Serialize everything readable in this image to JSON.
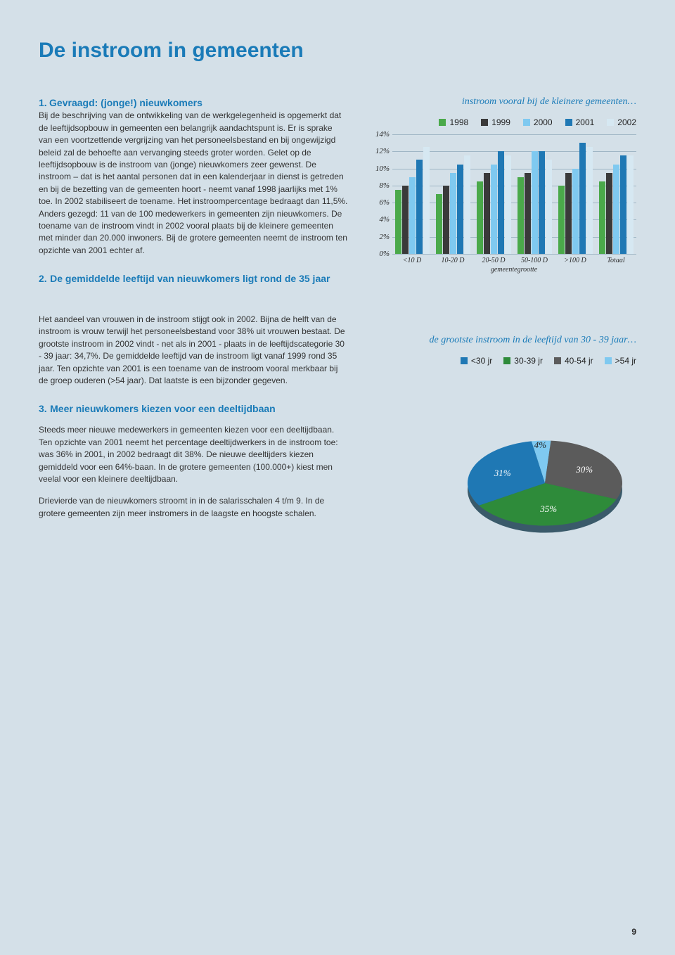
{
  "page_title": "De instroom in gemeenten",
  "page_number": "9",
  "section1": {
    "num": "1.",
    "heading": "Gevraagd: (jonge!) nieuwkomers",
    "body": "Bij de beschrijving van de ontwikkeling van de werkgelegenheid is opgemerkt dat de leeftijdsopbouw in gemeenten een belangrijk aandachtspunt is. Er is sprake van een voortzettende vergrijzing van het personeelsbestand en bij ongewijzigd beleid zal de behoefte aan vervanging steeds groter worden. Gelet op de leeftijdsopbouw is de instroom van (jonge) nieuwkomers zeer gewenst. De instroom – dat is het aantal personen dat in een kalenderjaar in dienst is getreden en bij de bezetting van de gemeenten hoort - neemt vanaf 1998 jaarlijks met 1% toe. In 2002 stabiliseert de toename. Het instroompercentage bedraagt dan 11,5%. Anders gezegd: 11 van de 100 medewerkers in gemeenten zijn nieuwkomers. De toename van de instroom vindt in 2002 vooral plaats bij de kleinere gemeenten met minder dan 20.000 inwoners. Bij de grotere gemeenten neemt de instroom ten opzichte van 2001 echter af."
  },
  "section2": {
    "num": "2.",
    "heading": "De gemiddelde leeftijd van nieuwkomers ligt rond de 35 jaar",
    "body": "Het aandeel van vrouwen in de instroom stijgt ook in 2002. Bijna de helft van de instroom is vrouw terwijl het personeelsbestand voor 38% uit vrouwen bestaat. De grootste instroom in 2002 vindt - net als in 2001 - plaats in de leeftijdscategorie 30 - 39 jaar: 34,7%. De gemiddelde leeftijd van de instroom ligt vanaf 1999 rond 35 jaar. Ten opzichte van 2001 is een toename van de instroom vooral merkbaar bij de groep ouderen (>54 jaar). Dat laatste is een bijzonder gegeven."
  },
  "section3": {
    "num": "3.",
    "heading": "Meer nieuwkomers kiezen voor een deeltijdbaan",
    "body1": "Steeds meer nieuwe medewerkers in gemeenten kiezen voor een deeltijdbaan. Ten opzichte van 2001 neemt het percentage deeltijdwerkers in de instroom toe: was 36% in 2001, in 2002 bedraagt dit 38%. De nieuwe deeltijders kiezen gemiddeld voor een 64%-baan. In de grotere gemeenten (100.000+) kiest men veelal voor een kleinere deeltijdbaan.",
    "body2": "Drievierde van de nieuwkomers stroomt in in de salarisschalen 4 t/m 9. In de grotere gemeenten zijn meer instromers in de laagste en hoogste schalen."
  },
  "bar_chart": {
    "caption": "instroom vooral bij de kleinere gemeenten…",
    "legend": [
      {
        "label": "1998",
        "color": "#4aa94a"
      },
      {
        "label": "1999",
        "color": "#3a3a3a"
      },
      {
        "label": "2000",
        "color": "#7fc9f0"
      },
      {
        "label": "2001",
        "color": "#1f78b4"
      },
      {
        "label": "2002",
        "color": "#d6e8f2"
      }
    ],
    "ymax": 14,
    "yticks": [
      "14%",
      "12%",
      "10%",
      "8%",
      "6%",
      "4%",
      "2%",
      "0%"
    ],
    "categories": [
      "<10 D",
      "10-20 D",
      "20-50 D",
      "50-100 D",
      ">100 D",
      "Totaal"
    ],
    "x_axis_title": "gemeentegrootte",
    "series": {
      "1998": [
        7.5,
        7.0,
        8.5,
        9.0,
        8.0,
        8.5
      ],
      "1999": [
        8.0,
        8.0,
        9.5,
        9.5,
        9.5,
        9.5
      ],
      "2000": [
        9.0,
        9.5,
        10.5,
        12.0,
        10.0,
        10.5
      ],
      "2001": [
        11.0,
        10.5,
        12.0,
        12.0,
        13.0,
        11.5
      ],
      "2002": [
        12.5,
        11.5,
        11.5,
        11.0,
        12.5,
        11.5
      ]
    }
  },
  "pie_chart": {
    "caption": "de grootste instroom in de leeftijd van 30 - 39 jaar…",
    "legend": [
      {
        "label": "<30 jr",
        "color": "#1f78b4"
      },
      {
        "label": "30-39 jr",
        "color": "#2e8b3a"
      },
      {
        "label": "40-54 jr",
        "color": "#5b5b5b"
      },
      {
        "label": ">54 jr",
        "color": "#7fc9f0"
      }
    ],
    "slices": [
      {
        "label": "4%",
        "value": 4,
        "color": "#7fc9f0"
      },
      {
        "label": "30%",
        "value": 30,
        "color": "#5b5b5b"
      },
      {
        "label": "35%",
        "value": 35,
        "color": "#2e8b3a"
      },
      {
        "label": "31%",
        "value": 31,
        "color": "#1f78b4"
      }
    ],
    "radius": 110
  }
}
